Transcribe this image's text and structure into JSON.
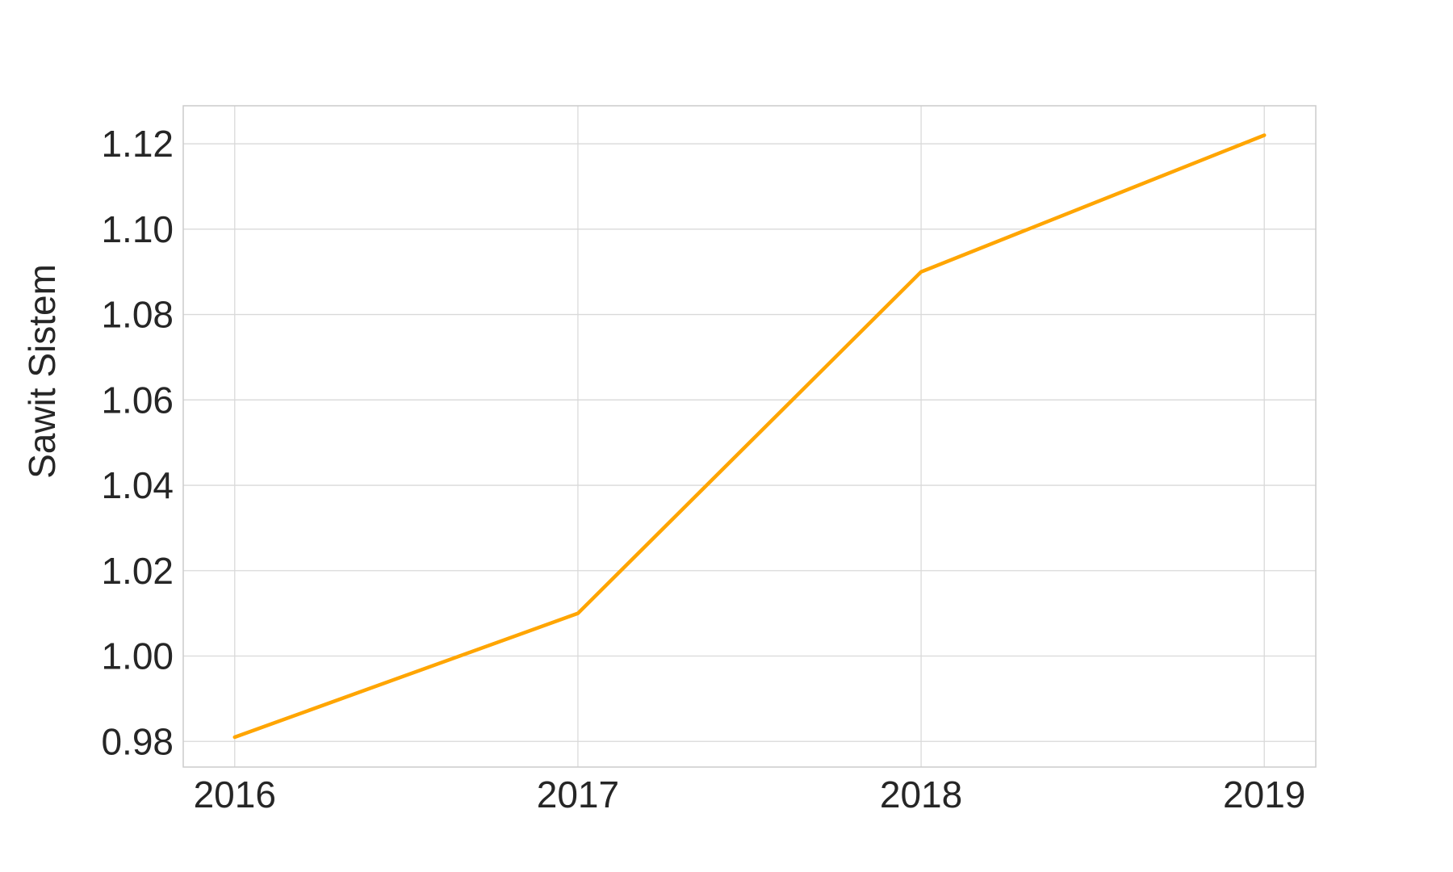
{
  "chart_data": {
    "type": "line",
    "title": "",
    "xlabel": "",
    "ylabel": "Sawit Sistem",
    "x": [
      2016,
      2017,
      2018,
      2019
    ],
    "series": [
      {
        "values": [
          0.981,
          1.01,
          1.09,
          1.122
        ],
        "color": "#FFA500"
      }
    ],
    "xticks": [
      "2016",
      "2017",
      "2018",
      "2019"
    ],
    "yticks": [
      "0.98",
      "1.00",
      "1.02",
      "1.04",
      "1.06",
      "1.08",
      "1.10",
      "1.12"
    ],
    "ytick_values": [
      0.98,
      1.0,
      1.02,
      1.04,
      1.06,
      1.08,
      1.1,
      1.12
    ],
    "xlim": [
      2015.85,
      2019.15
    ],
    "ylim": [
      0.974,
      1.1289
    ],
    "grid": true,
    "legend": "none"
  }
}
